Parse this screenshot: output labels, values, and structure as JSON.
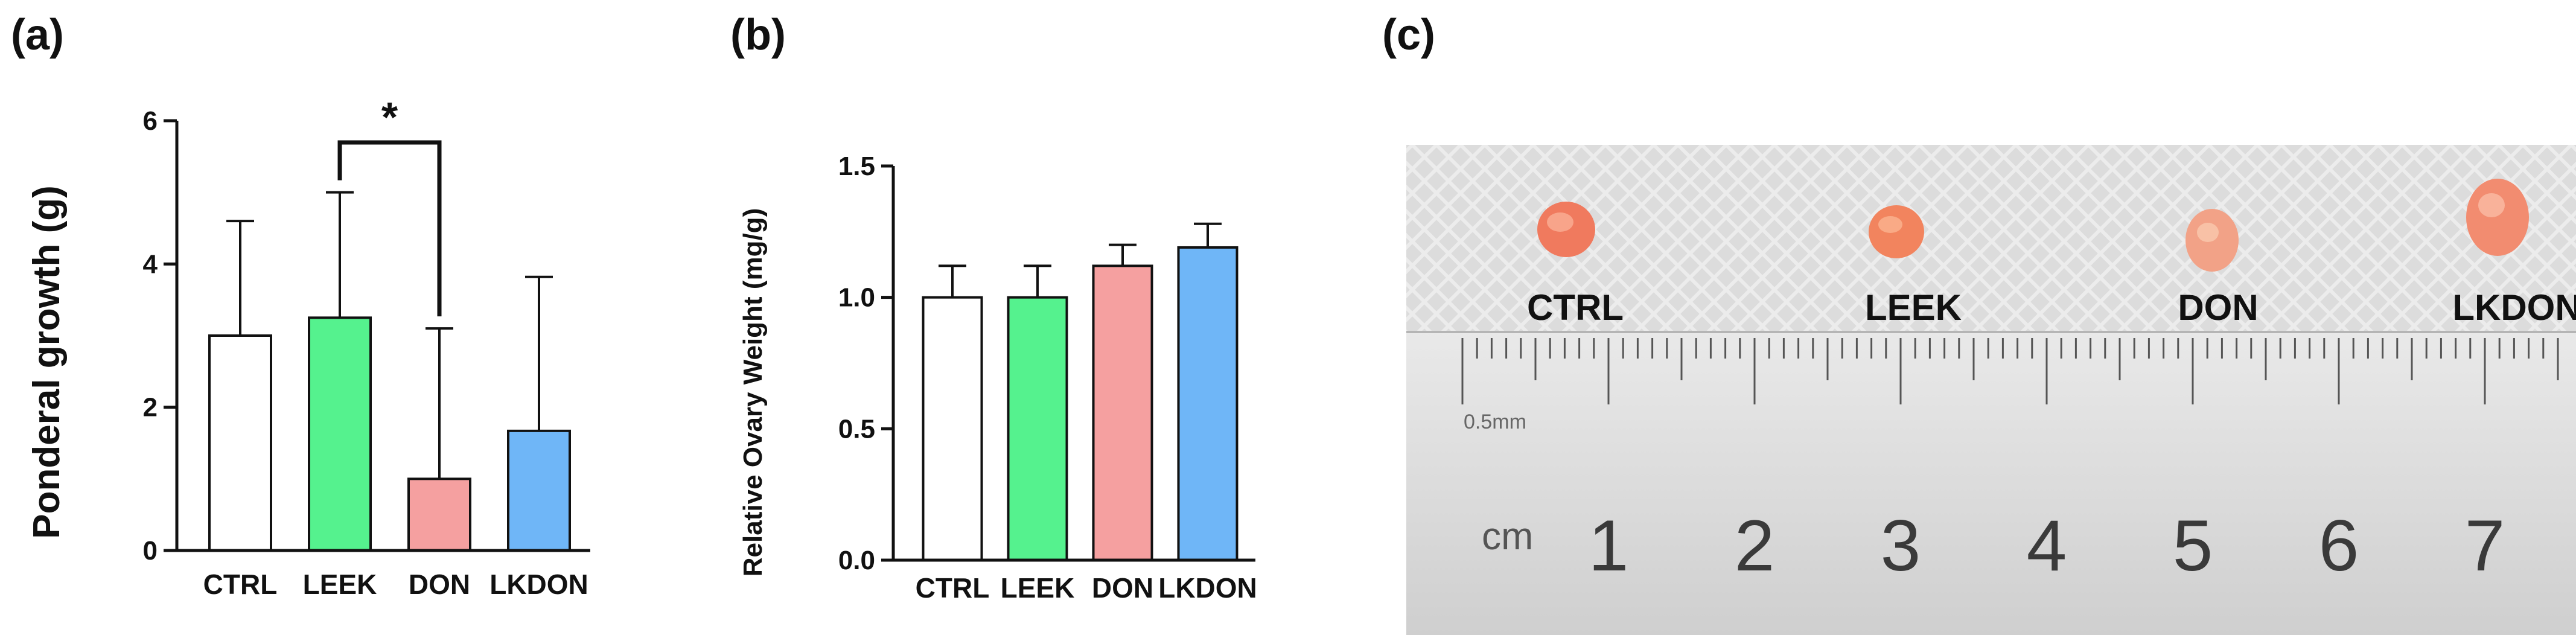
{
  "panels": {
    "a_label": "(a)",
    "b_label": "(b)",
    "c_label": "(c)"
  },
  "colors": {
    "CTRL": "#ffffff",
    "LEEK": "#55f28e",
    "DON": "#f5a0a0",
    "LKDON": "#6fb6f7"
  },
  "chart_data": [
    {
      "type": "bar",
      "panel": "a",
      "ylabel": "Ponderal growth (g)",
      "xlabel": "",
      "categories": [
        "CTRL",
        "LEEK",
        "DON",
        "LKDON"
      ],
      "values": [
        3.0,
        3.25,
        1.0,
        1.67
      ],
      "errors": [
        1.6,
        1.75,
        2.1,
        2.15
      ],
      "ylim": [
        0,
        6
      ],
      "yticks": [
        "0",
        "2",
        "4",
        "6"
      ],
      "significance": {
        "between": [
          "LEEK",
          "DON"
        ],
        "label": "*"
      }
    },
    {
      "type": "bar",
      "panel": "b",
      "ylabel": "Relative Ovary Weight (mg/g)",
      "xlabel": "",
      "categories": [
        "CTRL",
        "LEEK",
        "DON",
        "LKDON"
      ],
      "values": [
        1.0,
        1.0,
        1.12,
        1.19
      ],
      "errors": [
        0.12,
        0.12,
        0.08,
        0.09
      ],
      "ylim": [
        0,
        1.5
      ],
      "yticks": [
        "0.0",
        "0.5",
        "1.0",
        "1.5"
      ]
    }
  ],
  "photo": {
    "sample_labels": [
      "CTRL",
      "LEEK",
      "DON",
      "LKDON"
    ],
    "ruler_unit": "cm",
    "ruler_mm_label": "0.5mm",
    "ruler_numbers": [
      "1",
      "2",
      "3",
      "4",
      "5",
      "6",
      "7"
    ]
  }
}
